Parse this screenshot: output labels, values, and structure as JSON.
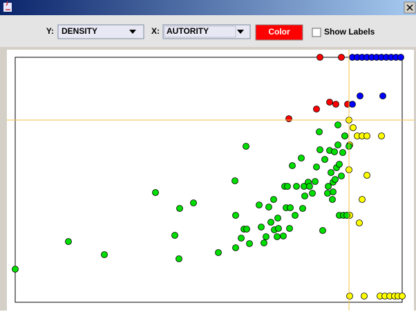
{
  "window": {
    "toolbar": {
      "y_label": "Y:",
      "y_value": "DENSITY",
      "x_label": "X:",
      "x_value": "AUTORITY",
      "color_button": "Color",
      "checkbox_label": "Show Labels"
    }
  },
  "chart_data": {
    "type": "scatter",
    "xlim": [
      0,
      560
    ],
    "ylim": [
      0,
      355
    ],
    "crosshair": {
      "x": 483,
      "y": 264,
      "color": "#f5c242"
    },
    "series": [
      {
        "color": "#ff0000",
        "x": [
          441,
          472,
          396,
          436,
          455,
          464,
          481
        ],
        "values": [
          355,
          355,
          266,
          280,
          290,
          287,
          287
        ]
      },
      {
        "color": "#0000ff",
        "x": [
          488,
          495,
          502,
          509,
          516,
          523,
          530,
          537,
          544,
          551,
          558,
          499,
          532,
          488
        ],
        "values": [
          355,
          355,
          355,
          355,
          355,
          355,
          355,
          355,
          355,
          355,
          355,
          299,
          299,
          287
        ]
      },
      {
        "color": "#ffff00",
        "x": [
          483,
          489,
          477,
          495,
          502,
          509,
          530,
          484,
          483,
          509,
          502,
          484,
          498,
          484,
          505,
          528,
          535,
          542,
          549,
          554,
          560
        ],
        "values": [
          264,
          253,
          241,
          241,
          241,
          241,
          241,
          228,
          192,
          184,
          149,
          126,
          115,
          9,
          9,
          9,
          9,
          9,
          9,
          9,
          9
        ]
      },
      {
        "color": "#00dd00",
        "x": [
          0,
          77,
          129,
          203,
          231,
          237,
          238,
          258,
          294,
          318,
          319,
          319,
          327,
          331,
          335,
          339,
          334,
          353,
          356,
          360,
          363,
          367,
          370,
          374,
          375,
          379,
          380,
          381,
          388,
          390,
          392,
          394,
          397,
          398,
          401,
          405,
          407,
          414,
          416,
          418,
          419,
          424,
          426,
          430,
          434,
          436,
          440,
          441,
          445,
          448,
          452,
          453,
          455,
          457,
          459,
          460,
          460,
          462,
          465,
          467,
          467,
          469,
          469,
          472,
          474,
          475,
          477,
          480,
          483,
          463
        ],
        "values": [
          48,
          88,
          69,
          159,
          97,
          63,
          136,
          144,
          72,
          176,
          126,
          79,
          93,
          106,
          106,
          85,
          226,
          141,
          109,
          86,
          95,
          138,
          116,
          149,
          105,
          95,
          122,
          107,
          96,
          168,
          137,
          168,
          107,
          137,
          198,
          126,
          168,
          209,
          136,
          168,
          154,
          174,
          168,
          158,
          175,
          196,
          247,
          221,
          104,
          207,
          158,
          168,
          220,
          188,
          149,
          174,
          160,
          218,
          195,
          257,
          228,
          200,
          126,
          183,
          217,
          126,
          241,
          126,
          226,
          178
        ]
      }
    ]
  }
}
